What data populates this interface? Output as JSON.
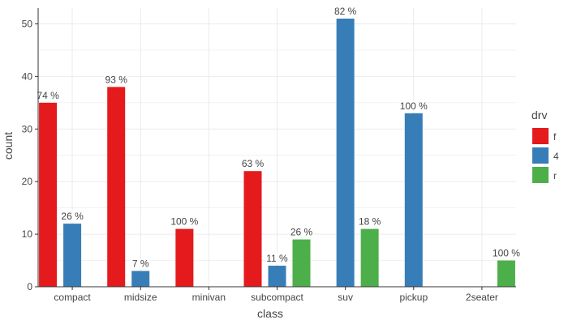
{
  "chart_data": {
    "type": "bar",
    "categories": [
      "compact",
      "midsize",
      "minivan",
      "subcompact",
      "suv",
      "pickup",
      "2seater"
    ],
    "series": [
      {
        "name": "f",
        "color": "#E41A1C",
        "values": [
          35,
          38,
          11,
          22,
          null,
          null,
          null
        ],
        "labels": [
          "74 %",
          "93 %",
          "100 %",
          "63 %",
          null,
          null,
          null
        ]
      },
      {
        "name": "4",
        "color": "#377EB8",
        "values": [
          12,
          3,
          null,
          4,
          51,
          33,
          null
        ],
        "labels": [
          "26 %",
          "7 %",
          null,
          "11 %",
          "82 %",
          "100 %",
          null
        ]
      },
      {
        "name": "r",
        "color": "#4DAF4A",
        "values": [
          null,
          null,
          null,
          9,
          11,
          null,
          5
        ],
        "labels": [
          null,
          null,
          null,
          "26 %",
          "18 %",
          null,
          "100 %"
        ]
      }
    ],
    "yticks": [
      "0",
      "10",
      "20",
      "30",
      "40",
      "50"
    ],
    "ylim": [
      0,
      53
    ],
    "xlabel": "class",
    "ylabel": "count",
    "legend_title": "drv",
    "legend_position": "right",
    "grid": true
  }
}
